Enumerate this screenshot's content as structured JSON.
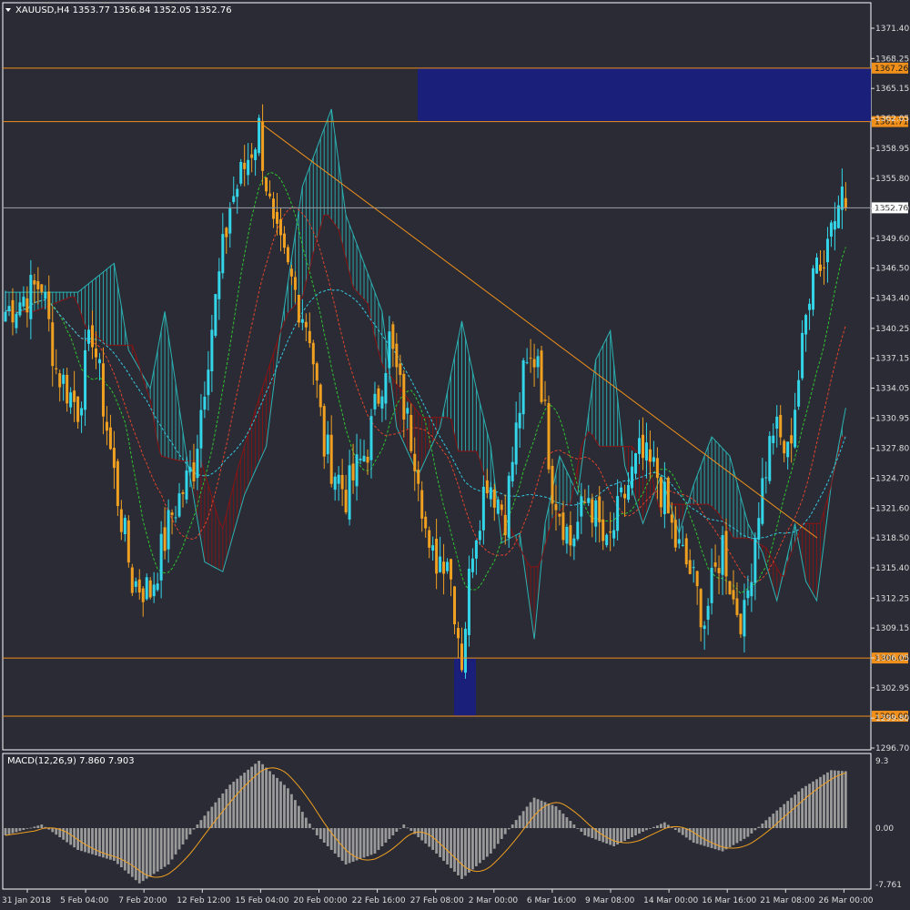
{
  "colors": {
    "background": "#2a2b35",
    "panel_border": "#ffffff",
    "bull_candle": "#33d6e8",
    "bear_candle": "#f0a020",
    "level_line": "#f0901a",
    "zone_fill": "#1a1f7a",
    "cloud_bull": "#2bb3b3",
    "cloud_bear": "#8a1414",
    "ma_fast": "#2ec42e",
    "ma_mid": "#e0442a",
    "ma_slow": "#34c8e0",
    "macd_hist": "#9a9a9a",
    "macd_signal": "#f0a020",
    "price_line": "#9aa0a8",
    "text": "#dfdfdf"
  },
  "chart_data": [
    {
      "type": "candlestick",
      "title": "XAUUSD,H4 1353.77 1356.84 1352.05 1352.76",
      "symbol": "XAUUSD",
      "timeframe": "H4",
      "ohlc_last": {
        "open": 1353.77,
        "high": 1356.84,
        "low": 1352.05,
        "close": 1352.76
      },
      "current_price": "1352.76",
      "ylim": [
        1296.7,
        1373.0
      ],
      "y_ticks": [
        "1371.40",
        "1368.25",
        "1365.15",
        "1362.05",
        "1358.95",
        "1355.80",
        "1352.70",
        "1349.60",
        "1346.50",
        "1343.40",
        "1340.25",
        "1337.15",
        "1334.05",
        "1330.95",
        "1327.80",
        "1324.70",
        "1321.60",
        "1318.50",
        "1315.40",
        "1312.25",
        "1309.15",
        "1306.05",
        "1302.95",
        "1299.80",
        "1296.70"
      ],
      "x_labels": [
        "31 Jan 2018",
        "5 Feb 04:00",
        "7 Feb 20:00",
        "12 Feb 12:00",
        "15 Feb 04:00",
        "20 Feb 00:00",
        "22 Feb 16:00",
        "27 Feb 08:00",
        "2 Mar 00:00",
        "6 Mar 16:00",
        "9 Mar 08:00",
        "14 Mar 00:00",
        "16 Mar 16:00",
        "21 Mar 08:00",
        "26 Mar 00:00"
      ],
      "horizontal_levels": [
        "1367.26",
        "1361.71",
        "1306.04",
        "1300.00"
      ],
      "trendline": {
        "start_price": 1361.5,
        "end_price": 1318.5
      },
      "price_path": [
        {
          "i": 0,
          "p": 1342
        },
        {
          "i": 10,
          "p": 1345
        },
        {
          "i": 14,
          "p": 1336
        },
        {
          "i": 20,
          "p": 1332
        },
        {
          "i": 24,
          "p": 1340
        },
        {
          "i": 30,
          "p": 1325
        },
        {
          "i": 35,
          "p": 1314
        },
        {
          "i": 40,
          "p": 1313
        },
        {
          "i": 46,
          "p": 1321
        },
        {
          "i": 52,
          "p": 1326
        },
        {
          "i": 56,
          "p": 1338
        },
        {
          "i": 62,
          "p": 1353
        },
        {
          "i": 70,
          "p": 1361
        },
        {
          "i": 74,
          "p": 1350
        },
        {
          "i": 78,
          "p": 1346
        },
        {
          "i": 84,
          "p": 1340
        },
        {
          "i": 88,
          "p": 1328
        },
        {
          "i": 94,
          "p": 1323
        },
        {
          "i": 100,
          "p": 1328
        },
        {
          "i": 106,
          "p": 1339
        },
        {
          "i": 110,
          "p": 1332
        },
        {
          "i": 114,
          "p": 1326
        },
        {
          "i": 117,
          "p": 1316
        },
        {
          "i": 122,
          "p": 1317
        },
        {
          "i": 126,
          "p": 1306
        },
        {
          "i": 129,
          "p": 1318
        },
        {
          "i": 133,
          "p": 1325
        },
        {
          "i": 138,
          "p": 1321
        },
        {
          "i": 143,
          "p": 1335
        },
        {
          "i": 147,
          "p": 1338
        },
        {
          "i": 151,
          "p": 1324
        },
        {
          "i": 156,
          "p": 1318
        },
        {
          "i": 161,
          "p": 1323
        },
        {
          "i": 166,
          "p": 1317
        },
        {
          "i": 170,
          "p": 1322
        },
        {
          "i": 175,
          "p": 1327
        },
        {
          "i": 180,
          "p": 1325
        },
        {
          "i": 185,
          "p": 1318
        },
        {
          "i": 189,
          "p": 1315
        },
        {
          "i": 193,
          "p": 1310
        },
        {
          "i": 198,
          "p": 1318
        },
        {
          "i": 201,
          "p": 1312
        },
        {
          "i": 204,
          "p": 1310
        },
        {
          "i": 208,
          "p": 1322
        },
        {
          "i": 212,
          "p": 1330
        },
        {
          "i": 216,
          "p": 1327
        },
        {
          "i": 220,
          "p": 1338
        },
        {
          "i": 223,
          "p": 1348
        },
        {
          "i": 226,
          "p": 1347
        },
        {
          "i": 228,
          "p": 1352
        },
        {
          "i": 230,
          "p": 1355
        },
        {
          "i": 232,
          "p": 1352.76
        }
      ]
    },
    {
      "type": "bar",
      "title": "MACD(12,26,9) 7.860 7.903",
      "indicator": "MACD(12,26,9)",
      "main_value": 7.86,
      "signal_value": 7.903,
      "ylim": [
        -7.761,
        9.3
      ],
      "y_ticks": [
        "9.3",
        "0.00",
        "-7.761"
      ],
      "macd_path": [
        {
          "i": 0,
          "v": -1.0
        },
        {
          "i": 10,
          "v": 0.5
        },
        {
          "i": 20,
          "v": -3.0
        },
        {
          "i": 30,
          "v": -4.5
        },
        {
          "i": 37,
          "v": -7.6
        },
        {
          "i": 45,
          "v": -5.0
        },
        {
          "i": 53,
          "v": 0.5
        },
        {
          "i": 62,
          "v": 6.0
        },
        {
          "i": 70,
          "v": 9.3
        },
        {
          "i": 78,
          "v": 5.5
        },
        {
          "i": 86,
          "v": -1.0
        },
        {
          "i": 94,
          "v": -5.0
        },
        {
          "i": 102,
          "v": -3.5
        },
        {
          "i": 110,
          "v": 0.5
        },
        {
          "i": 118,
          "v": -3.0
        },
        {
          "i": 126,
          "v": -7.0
        },
        {
          "i": 134,
          "v": -3.5
        },
        {
          "i": 140,
          "v": 0.5
        },
        {
          "i": 146,
          "v": 4.2
        },
        {
          "i": 152,
          "v": 3.0
        },
        {
          "i": 160,
          "v": -1.0
        },
        {
          "i": 168,
          "v": -2.5
        },
        {
          "i": 176,
          "v": -0.5
        },
        {
          "i": 182,
          "v": 0.8
        },
        {
          "i": 190,
          "v": -2.0
        },
        {
          "i": 198,
          "v": -3.2
        },
        {
          "i": 205,
          "v": -1.2
        },
        {
          "i": 212,
          "v": 2.0
        },
        {
          "i": 220,
          "v": 5.5
        },
        {
          "i": 228,
          "v": 8.0
        },
        {
          "i": 232,
          "v": 7.86
        }
      ]
    }
  ]
}
